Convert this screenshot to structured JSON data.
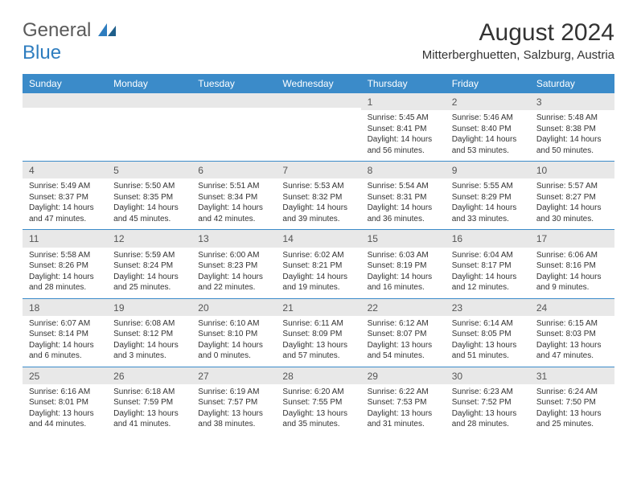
{
  "logo": {
    "line1": "General",
    "line2": "Blue"
  },
  "title": "August 2024",
  "location": "Mitterberghuetten, Salzburg, Austria",
  "colors": {
    "header_bg": "#3b8bc9",
    "header_fg": "#ffffff",
    "daynum_bg": "#e8e8e8",
    "border": "#3b8bc9",
    "text": "#333333",
    "logo_gray": "#5a5a5a",
    "logo_blue": "#2e7dbf"
  },
  "weekdays": [
    "Sunday",
    "Monday",
    "Tuesday",
    "Wednesday",
    "Thursday",
    "Friday",
    "Saturday"
  ],
  "weeks": [
    [
      null,
      null,
      null,
      null,
      {
        "n": "1",
        "sr": "Sunrise: 5:45 AM",
        "ss": "Sunset: 8:41 PM",
        "dl1": "Daylight: 14 hours",
        "dl2": "and 56 minutes."
      },
      {
        "n": "2",
        "sr": "Sunrise: 5:46 AM",
        "ss": "Sunset: 8:40 PM",
        "dl1": "Daylight: 14 hours",
        "dl2": "and 53 minutes."
      },
      {
        "n": "3",
        "sr": "Sunrise: 5:48 AM",
        "ss": "Sunset: 8:38 PM",
        "dl1": "Daylight: 14 hours",
        "dl2": "and 50 minutes."
      }
    ],
    [
      {
        "n": "4",
        "sr": "Sunrise: 5:49 AM",
        "ss": "Sunset: 8:37 PM",
        "dl1": "Daylight: 14 hours",
        "dl2": "and 47 minutes."
      },
      {
        "n": "5",
        "sr": "Sunrise: 5:50 AM",
        "ss": "Sunset: 8:35 PM",
        "dl1": "Daylight: 14 hours",
        "dl2": "and 45 minutes."
      },
      {
        "n": "6",
        "sr": "Sunrise: 5:51 AM",
        "ss": "Sunset: 8:34 PM",
        "dl1": "Daylight: 14 hours",
        "dl2": "and 42 minutes."
      },
      {
        "n": "7",
        "sr": "Sunrise: 5:53 AM",
        "ss": "Sunset: 8:32 PM",
        "dl1": "Daylight: 14 hours",
        "dl2": "and 39 minutes."
      },
      {
        "n": "8",
        "sr": "Sunrise: 5:54 AM",
        "ss": "Sunset: 8:31 PM",
        "dl1": "Daylight: 14 hours",
        "dl2": "and 36 minutes."
      },
      {
        "n": "9",
        "sr": "Sunrise: 5:55 AM",
        "ss": "Sunset: 8:29 PM",
        "dl1": "Daylight: 14 hours",
        "dl2": "and 33 minutes."
      },
      {
        "n": "10",
        "sr": "Sunrise: 5:57 AM",
        "ss": "Sunset: 8:27 PM",
        "dl1": "Daylight: 14 hours",
        "dl2": "and 30 minutes."
      }
    ],
    [
      {
        "n": "11",
        "sr": "Sunrise: 5:58 AM",
        "ss": "Sunset: 8:26 PM",
        "dl1": "Daylight: 14 hours",
        "dl2": "and 28 minutes."
      },
      {
        "n": "12",
        "sr": "Sunrise: 5:59 AM",
        "ss": "Sunset: 8:24 PM",
        "dl1": "Daylight: 14 hours",
        "dl2": "and 25 minutes."
      },
      {
        "n": "13",
        "sr": "Sunrise: 6:00 AM",
        "ss": "Sunset: 8:23 PM",
        "dl1": "Daylight: 14 hours",
        "dl2": "and 22 minutes."
      },
      {
        "n": "14",
        "sr": "Sunrise: 6:02 AM",
        "ss": "Sunset: 8:21 PM",
        "dl1": "Daylight: 14 hours",
        "dl2": "and 19 minutes."
      },
      {
        "n": "15",
        "sr": "Sunrise: 6:03 AM",
        "ss": "Sunset: 8:19 PM",
        "dl1": "Daylight: 14 hours",
        "dl2": "and 16 minutes."
      },
      {
        "n": "16",
        "sr": "Sunrise: 6:04 AM",
        "ss": "Sunset: 8:17 PM",
        "dl1": "Daylight: 14 hours",
        "dl2": "and 12 minutes."
      },
      {
        "n": "17",
        "sr": "Sunrise: 6:06 AM",
        "ss": "Sunset: 8:16 PM",
        "dl1": "Daylight: 14 hours",
        "dl2": "and 9 minutes."
      }
    ],
    [
      {
        "n": "18",
        "sr": "Sunrise: 6:07 AM",
        "ss": "Sunset: 8:14 PM",
        "dl1": "Daylight: 14 hours",
        "dl2": "and 6 minutes."
      },
      {
        "n": "19",
        "sr": "Sunrise: 6:08 AM",
        "ss": "Sunset: 8:12 PM",
        "dl1": "Daylight: 14 hours",
        "dl2": "and 3 minutes."
      },
      {
        "n": "20",
        "sr": "Sunrise: 6:10 AM",
        "ss": "Sunset: 8:10 PM",
        "dl1": "Daylight: 14 hours",
        "dl2": "and 0 minutes."
      },
      {
        "n": "21",
        "sr": "Sunrise: 6:11 AM",
        "ss": "Sunset: 8:09 PM",
        "dl1": "Daylight: 13 hours",
        "dl2": "and 57 minutes."
      },
      {
        "n": "22",
        "sr": "Sunrise: 6:12 AM",
        "ss": "Sunset: 8:07 PM",
        "dl1": "Daylight: 13 hours",
        "dl2": "and 54 minutes."
      },
      {
        "n": "23",
        "sr": "Sunrise: 6:14 AM",
        "ss": "Sunset: 8:05 PM",
        "dl1": "Daylight: 13 hours",
        "dl2": "and 51 minutes."
      },
      {
        "n": "24",
        "sr": "Sunrise: 6:15 AM",
        "ss": "Sunset: 8:03 PM",
        "dl1": "Daylight: 13 hours",
        "dl2": "and 47 minutes."
      }
    ],
    [
      {
        "n": "25",
        "sr": "Sunrise: 6:16 AM",
        "ss": "Sunset: 8:01 PM",
        "dl1": "Daylight: 13 hours",
        "dl2": "and 44 minutes."
      },
      {
        "n": "26",
        "sr": "Sunrise: 6:18 AM",
        "ss": "Sunset: 7:59 PM",
        "dl1": "Daylight: 13 hours",
        "dl2": "and 41 minutes."
      },
      {
        "n": "27",
        "sr": "Sunrise: 6:19 AM",
        "ss": "Sunset: 7:57 PM",
        "dl1": "Daylight: 13 hours",
        "dl2": "and 38 minutes."
      },
      {
        "n": "28",
        "sr": "Sunrise: 6:20 AM",
        "ss": "Sunset: 7:55 PM",
        "dl1": "Daylight: 13 hours",
        "dl2": "and 35 minutes."
      },
      {
        "n": "29",
        "sr": "Sunrise: 6:22 AM",
        "ss": "Sunset: 7:53 PM",
        "dl1": "Daylight: 13 hours",
        "dl2": "and 31 minutes."
      },
      {
        "n": "30",
        "sr": "Sunrise: 6:23 AM",
        "ss": "Sunset: 7:52 PM",
        "dl1": "Daylight: 13 hours",
        "dl2": "and 28 minutes."
      },
      {
        "n": "31",
        "sr": "Sunrise: 6:24 AM",
        "ss": "Sunset: 7:50 PM",
        "dl1": "Daylight: 13 hours",
        "dl2": "and 25 minutes."
      }
    ]
  ]
}
